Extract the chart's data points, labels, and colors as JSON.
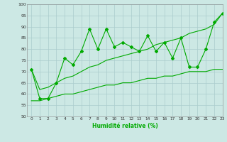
{
  "xlabel": "Humidité relative (%)",
  "xlim": [
    -0.5,
    23
  ],
  "ylim": [
    50,
    100
  ],
  "xticks": [
    0,
    1,
    2,
    3,
    4,
    5,
    6,
    7,
    8,
    9,
    10,
    11,
    12,
    13,
    14,
    15,
    16,
    17,
    18,
    19,
    20,
    21,
    22,
    23
  ],
  "yticks": [
    50,
    55,
    60,
    65,
    70,
    75,
    80,
    85,
    90,
    95,
    100
  ],
  "background_color": "#cce8e4",
  "grid_color": "#aacccc",
  "line_color": "#00aa00",
  "main_data": [
    71,
    58,
    58,
    65,
    76,
    73,
    79,
    89,
    80,
    89,
    81,
    83,
    81,
    79,
    86,
    79,
    83,
    76,
    85,
    72,
    72,
    80,
    92,
    96
  ],
  "smooth_upper_data": [
    71,
    62,
    63,
    65,
    67,
    68,
    70,
    72,
    73,
    75,
    76,
    77,
    78,
    79,
    80,
    82,
    83,
    84,
    85,
    87,
    88,
    89,
    91,
    96
  ],
  "smooth_lower_data": [
    57,
    57,
    58,
    59,
    60,
    60,
    61,
    62,
    63,
    64,
    64,
    65,
    65,
    66,
    67,
    67,
    68,
    68,
    69,
    70,
    70,
    70,
    71,
    71
  ]
}
